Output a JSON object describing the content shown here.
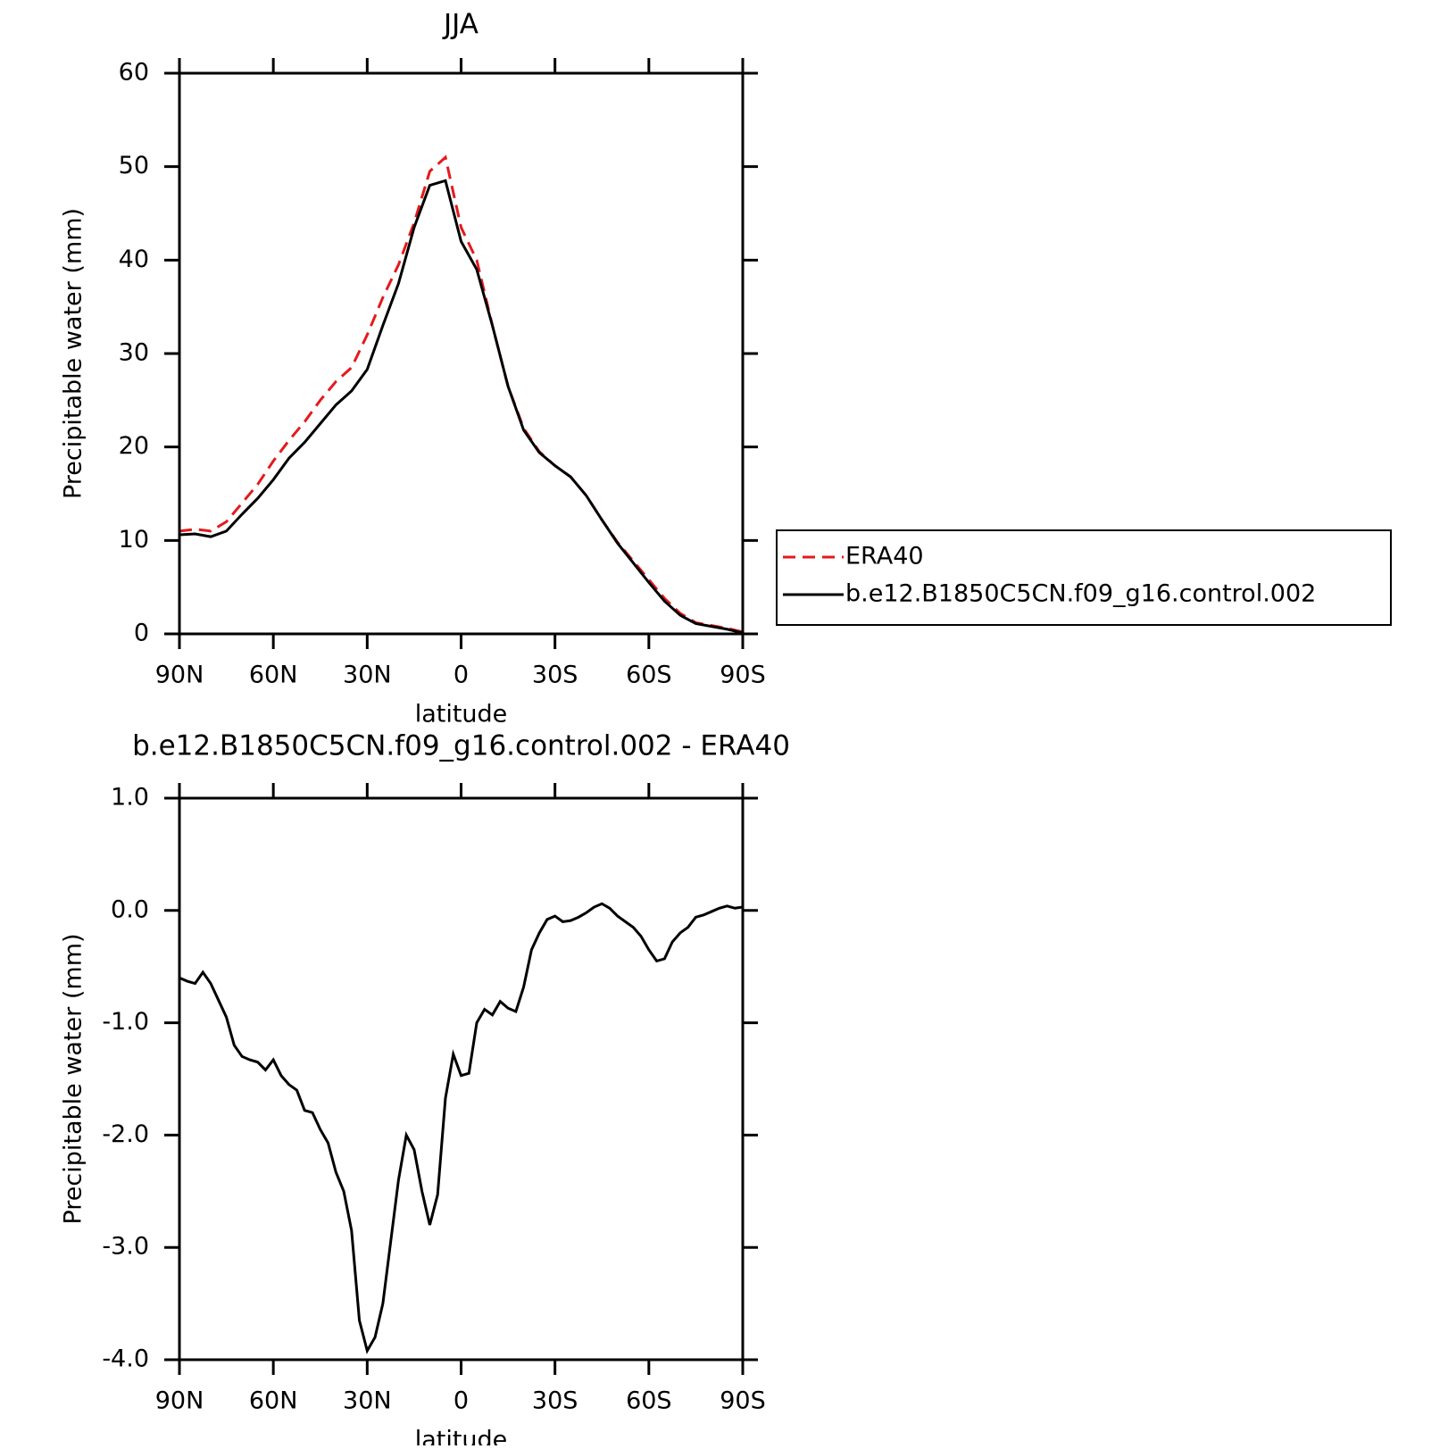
{
  "chart_data": [
    {
      "type": "line",
      "title": "JJA",
      "xlabel": "latitude",
      "ylabel": "Precipitable water (mm)",
      "x": [
        90,
        85,
        80,
        75,
        70,
        65,
        60,
        55,
        50,
        45,
        40,
        35,
        30,
        25,
        20,
        15,
        10,
        5,
        0,
        -5,
        -10,
        -15,
        -20,
        -25,
        -30,
        -35,
        -40,
        -45,
        -50,
        -55,
        -60,
        -65,
        -70,
        -75,
        -80,
        -85,
        -90
      ],
      "series": [
        {
          "name": "ERA40",
          "color": "#e41a1c",
          "linestyle": "dashed",
          "values": [
            11.0,
            11.2,
            11.0,
            12.0,
            14.0,
            16.0,
            18.5,
            20.7,
            22.7,
            25.0,
            27.0,
            28.5,
            32.0,
            36.0,
            39.5,
            44.0,
            49.5,
            51.0,
            43.5,
            40.0,
            33.0,
            26.5,
            22.0,
            19.5,
            18.0,
            16.8,
            14.8,
            12.2,
            9.8,
            7.8,
            5.8,
            3.8,
            2.2,
            1.2,
            0.9,
            0.6,
            0.2
          ]
        },
        {
          "name": "b.e12.B1850C5CN.f09_g16.control.002",
          "color": "#000000",
          "linestyle": "solid",
          "values": [
            10.6,
            10.7,
            10.4,
            11.0,
            12.8,
            14.5,
            16.5,
            18.8,
            20.5,
            22.5,
            24.5,
            26.0,
            28.3,
            33.0,
            37.5,
            43.5,
            48.0,
            48.5,
            42.0,
            39.0,
            33.0,
            26.5,
            21.8,
            19.4,
            18.0,
            16.8,
            14.8,
            12.2,
            9.7,
            7.6,
            5.5,
            3.5,
            2.0,
            1.1,
            0.8,
            0.5,
            0.1
          ]
        }
      ],
      "xlim": [
        90,
        -90
      ],
      "xticks": [
        {
          "value": 90,
          "label": "90N"
        },
        {
          "value": 60,
          "label": "60N"
        },
        {
          "value": 30,
          "label": "30N"
        },
        0,
        {
          "value": -30,
          "label": "30S"
        },
        {
          "value": -60,
          "label": "60S"
        },
        {
          "value": -90,
          "label": "90S"
        }
      ],
      "ylim": [
        0,
        60
      ],
      "yticks": [
        0,
        10,
        20,
        30,
        40,
        50,
        60
      ],
      "legend": "right"
    },
    {
      "type": "line",
      "title": "b.e12.B1850C5CN.f09_g16.control.002 - ERA40",
      "xlabel": "latitude",
      "ylabel": "Precipitable water (mm)",
      "x": [
        90,
        87.5,
        85,
        82.5,
        80,
        77.5,
        75,
        72.5,
        70,
        67.5,
        65,
        62.5,
        60,
        57.5,
        55,
        52.5,
        50,
        47.5,
        45,
        42.5,
        40,
        37.5,
        35,
        32.5,
        30,
        27.5,
        25,
        22.5,
        20,
        17.5,
        15,
        12.5,
        10,
        7.5,
        5,
        2.5,
        0,
        -2.5,
        -5,
        -7.5,
        -10,
        -12.5,
        -15,
        -17.5,
        -20,
        -22.5,
        -25,
        -27.5,
        -30,
        -32.5,
        -35,
        -37.5,
        -40,
        -42.5,
        -45,
        -47.5,
        -50,
        -52.5,
        -55,
        -57.5,
        -60,
        -62.5,
        -65,
        -67.5,
        -70,
        -72.5,
        -75,
        -77.5,
        -80,
        -82.5,
        -85,
        -87.5,
        -90
      ],
      "series": [
        {
          "color": "#000000",
          "linestyle": "solid",
          "values": [
            -0.6,
            -0.63,
            -0.65,
            -0.55,
            -0.65,
            -0.8,
            -0.95,
            -1.2,
            -1.3,
            -1.33,
            -1.35,
            -1.42,
            -1.33,
            -1.47,
            -1.55,
            -1.6,
            -1.78,
            -1.8,
            -1.95,
            -2.07,
            -2.33,
            -2.5,
            -2.85,
            -3.65,
            -3.92,
            -3.8,
            -3.5,
            -2.95,
            -2.4,
            -2.0,
            -2.13,
            -2.5,
            -2.8,
            -2.53,
            -1.67,
            -1.28,
            -1.47,
            -1.45,
            -1.0,
            -0.88,
            -0.93,
            -0.81,
            -0.87,
            -0.9,
            -0.68,
            -0.35,
            -0.2,
            -0.08,
            -0.05,
            -0.1,
            -0.09,
            -0.06,
            -0.02,
            0.03,
            0.06,
            0.02,
            -0.05,
            -0.1,
            -0.15,
            -0.23,
            -0.35,
            -0.45,
            -0.43,
            -0.28,
            -0.2,
            -0.15,
            -0.06,
            -0.04,
            -0.01,
            0.02,
            0.04,
            0.02,
            0.03
          ]
        }
      ],
      "xlim": [
        90,
        -90
      ],
      "xticks": [
        {
          "value": 90,
          "label": "90N"
        },
        {
          "value": 60,
          "label": "60N"
        },
        {
          "value": 30,
          "label": "30N"
        },
        0,
        {
          "value": -30,
          "label": "30S"
        },
        {
          "value": -60,
          "label": "60S"
        },
        {
          "value": -90,
          "label": "90S"
        }
      ],
      "ylim": [
        -4,
        1
      ],
      "yticks": [
        {
          "value": -4,
          "label": "-4.0"
        },
        {
          "value": -3,
          "label": "-3.0"
        },
        {
          "value": -2,
          "label": "-2.0"
        },
        {
          "value": -1,
          "label": "-1.0"
        },
        {
          "value": 0,
          "label": "0.0"
        },
        {
          "value": 1,
          "label": "1.0"
        }
      ]
    }
  ]
}
